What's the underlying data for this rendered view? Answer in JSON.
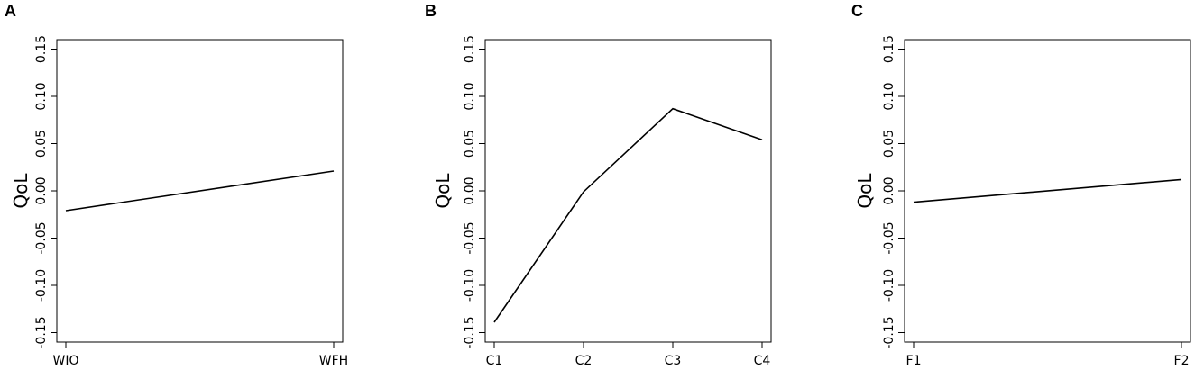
{
  "chart_data": [
    {
      "type": "line",
      "panel_label": "A",
      "ylabel": "QoL",
      "categories": [
        "WIO",
        "WFH"
      ],
      "values": [
        -0.021,
        0.021
      ],
      "ylim": [
        -0.16,
        0.16
      ],
      "yticks": [
        "-0.15",
        "-0.10",
        "-0.05",
        "0.00",
        "0.05",
        "0.10",
        "0.15"
      ],
      "grid": false
    },
    {
      "type": "line",
      "panel_label": "B",
      "ylabel": "QoL",
      "categories": [
        "C1",
        "C2",
        "C3",
        "C4"
      ],
      "values": [
        -0.139,
        -0.001,
        0.087,
        0.054
      ],
      "ylim": [
        -0.16,
        0.16
      ],
      "yticks": [
        "-0.15",
        "-0.10",
        "-0.05",
        "0.00",
        "0.05",
        "0.10",
        "0.15"
      ],
      "grid": false
    },
    {
      "type": "line",
      "panel_label": "C",
      "ylabel": "QoL",
      "categories": [
        "F1",
        "F2"
      ],
      "values": [
        -0.012,
        0.012
      ],
      "ylim": [
        -0.16,
        0.16
      ],
      "yticks": [
        "-0.15",
        "-0.10",
        "-0.05",
        "0.00",
        "0.05",
        "0.10",
        "0.15"
      ],
      "grid": false
    }
  ]
}
